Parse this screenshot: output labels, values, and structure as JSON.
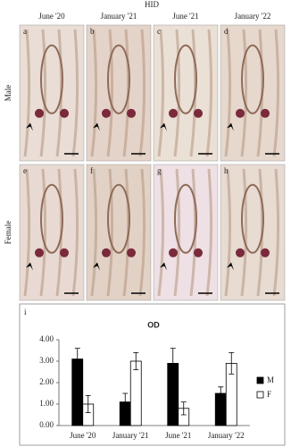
{
  "figure": {
    "header": "HID",
    "columns": [
      "June '20",
      "January '21",
      "June '21",
      "January '22"
    ],
    "rows": [
      "Male",
      "Female"
    ],
    "panels": [
      "a",
      "b",
      "c",
      "d",
      "e",
      "f",
      "g",
      "h",
      "i"
    ]
  },
  "chart_data": {
    "type": "bar",
    "title": "OD",
    "categories": [
      "June '20",
      "January '21",
      "June '21",
      "January '22"
    ],
    "series": [
      {
        "name": "M",
        "color": "#000000",
        "values": [
          3.1,
          1.1,
          2.9,
          1.5
        ],
        "errors": [
          0.5,
          0.4,
          0.7,
          0.3
        ]
      },
      {
        "name": "F",
        "color": "#ffffff",
        "values": [
          1.0,
          3.0,
          0.8,
          2.9
        ],
        "errors": [
          0.4,
          0.4,
          0.3,
          0.5
        ]
      }
    ],
    "ylim": [
      0,
      4
    ],
    "yticks": [
      {
        "value": 0,
        "label": "0.00"
      },
      {
        "value": 1,
        "label": "1.00"
      },
      {
        "value": 2,
        "label": "2.00"
      },
      {
        "value": 3,
        "label": "3.00"
      },
      {
        "value": 4,
        "label": "4.00"
      }
    ],
    "grid": false,
    "legend": "right"
  }
}
